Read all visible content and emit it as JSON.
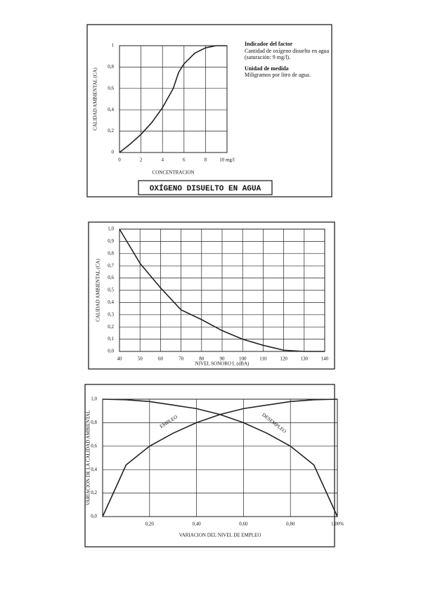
{
  "chart_data": [
    {
      "type": "line",
      "title": "OXÍGENO DISUELTO EN AGUA",
      "x_label": "CONCENTRACION",
      "y_label": "CALIDAD AMBIENTAL (CA)",
      "indicator_heading": "Indicador del factor",
      "indicator_text": "Cantidad de oxígeno disuelto en agua (saturación: 9 mg/l).",
      "unit_heading": "Unidad de medida",
      "unit_text": "Miligramos por litro de agua.",
      "x": [
        0,
        1,
        2,
        3,
        4,
        5,
        5.5,
        6,
        7,
        8,
        9,
        10
      ],
      "values": [
        0,
        0.08,
        0.17,
        0.28,
        0.42,
        0.6,
        0.75,
        0.83,
        0.93,
        0.98,
        1,
        1
      ],
      "color": "#222222",
      "xlim": [
        0,
        10
      ],
      "xticks": [
        0,
        2,
        4,
        6,
        8,
        {
          "value": 10,
          "label": "10 mg/l"
        }
      ],
      "ylim": [
        0,
        1
      ],
      "yticks": [
        0,
        {
          "value": 0.2,
          "label": "0,2"
        },
        {
          "value": 0.4,
          "label": "0,4"
        },
        {
          "value": 0.6,
          "label": "0,6"
        },
        {
          "value": 0.8,
          "label": "0,8"
        },
        1
      ],
      "grid": true
    },
    {
      "type": "line",
      "x_label": "NIVEL SONORO L (dBA)",
      "y_label": "CALIDAD AMBIENTAL (CA)",
      "x": [
        40,
        50,
        60,
        70,
        80,
        90,
        100,
        110,
        120,
        130,
        140
      ],
      "values": [
        1.0,
        0.72,
        0.52,
        0.34,
        0.26,
        0.17,
        0.1,
        0.05,
        0.01,
        0,
        0
      ],
      "color": "#222222",
      "xlim": [
        40,
        140
      ],
      "xticks": [
        40,
        50,
        60,
        70,
        80,
        90,
        100,
        110,
        120,
        130,
        140
      ],
      "ylim": [
        0,
        1
      ],
      "yticks": [
        {
          "value": 0,
          "label": "0,0"
        },
        {
          "value": 0.1,
          "label": "0,1"
        },
        {
          "value": 0.2,
          "label": "0,2"
        },
        {
          "value": 0.3,
          "label": "0,3"
        },
        {
          "value": 0.4,
          "label": "0,4"
        },
        {
          "value": 0.5,
          "label": "0,5"
        },
        {
          "value": 0.6,
          "label": "0,6"
        },
        {
          "value": 0.7,
          "label": "0,7"
        },
        {
          "value": 0.8,
          "label": "0,8"
        },
        {
          "value": 0.9,
          "label": "0,9"
        },
        {
          "value": 1,
          "label": "1,0"
        }
      ],
      "grid": true
    },
    {
      "type": "line",
      "x_label": "VARIACION DEL NIVEL DE EMPLEO",
      "y_label": "VARIACION DE LA CALIDAD AMBIENTAL",
      "x": [
        0,
        0.1,
        0.2,
        0.3,
        0.4,
        0.5,
        0.6,
        0.7,
        0.8,
        0.9,
        1
      ],
      "series": [
        {
          "name": "EMPLEO",
          "color": "#222222",
          "values": [
            0,
            0.44,
            0.6,
            0.71,
            0.8,
            0.87,
            0.92,
            0.95,
            0.98,
            0.995,
            1
          ]
        },
        {
          "name": "DESEMPLEO",
          "color": "#222222",
          "values": [
            1,
            0.995,
            0.98,
            0.95,
            0.92,
            0.87,
            0.8,
            0.71,
            0.6,
            0.44,
            0
          ]
        }
      ],
      "xlim": [
        0,
        1
      ],
      "xticks": [
        {
          "value": 0.2,
          "label": "0,20"
        },
        {
          "value": 0.4,
          "label": "0,40"
        },
        {
          "value": 0.6,
          "label": "0,60"
        },
        {
          "value": 0.8,
          "label": "0,80"
        },
        {
          "value": 1,
          "label": "1,00%"
        }
      ],
      "ylim": [
        0,
        1
      ],
      "yticks": [
        {
          "value": 0,
          "label": "0,0"
        },
        {
          "value": 0.2,
          "label": "0,2"
        },
        {
          "value": 0.4,
          "label": "0,4"
        },
        {
          "value": 0.6,
          "label": "0,6"
        },
        {
          "value": 0.8,
          "label": "0,8"
        },
        {
          "value": 1,
          "label": "1,0"
        }
      ],
      "grid": true
    }
  ]
}
